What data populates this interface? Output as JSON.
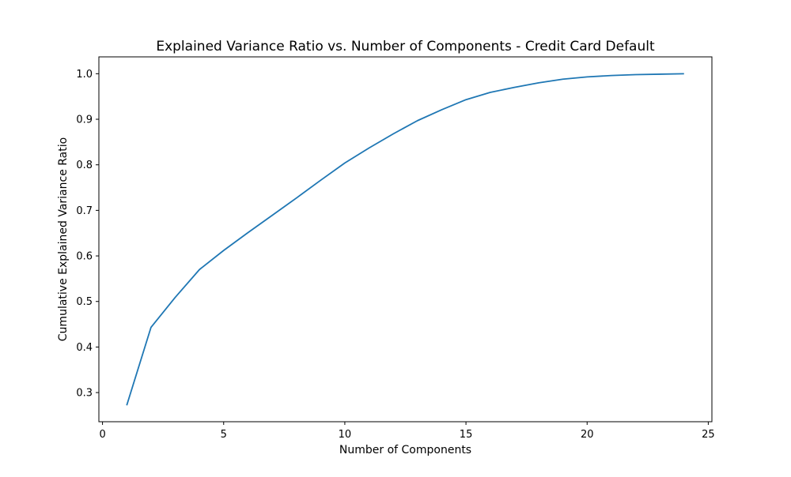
{
  "chart_data": {
    "type": "line",
    "title": "Explained Variance Ratio vs. Number of Components - Credit Card Default",
    "xlabel": "Number of Components",
    "ylabel": "Cumulative Explained Variance Ratio",
    "xlim": [
      -0.15,
      25.15
    ],
    "ylim": [
      0.236,
      1.037
    ],
    "xticks": [
      0,
      5,
      10,
      15,
      20,
      25
    ],
    "yticks": [
      0.3,
      0.4,
      0.5,
      0.6,
      0.7,
      0.8,
      0.9,
      1.0
    ],
    "xtick_labels": [
      "0",
      "5",
      "10",
      "15",
      "20",
      "25"
    ],
    "ytick_labels": [
      "0.3",
      "0.4",
      "0.5",
      "0.6",
      "0.7",
      "0.8",
      "0.9",
      "1.0"
    ],
    "grid": false,
    "line_color": "#1f77b4",
    "x": [
      1,
      2,
      3,
      4,
      5,
      6,
      7,
      8,
      9,
      10,
      11,
      12,
      13,
      14,
      15,
      16,
      17,
      18,
      19,
      20,
      21,
      22,
      23,
      24
    ],
    "y": [
      0.272,
      0.443,
      0.509,
      0.57,
      0.612,
      0.651,
      0.689,
      0.727,
      0.766,
      0.804,
      0.837,
      0.868,
      0.897,
      0.921,
      0.943,
      0.959,
      0.97,
      0.98,
      0.988,
      0.993,
      0.996,
      0.998,
      0.999,
      1.0
    ]
  }
}
